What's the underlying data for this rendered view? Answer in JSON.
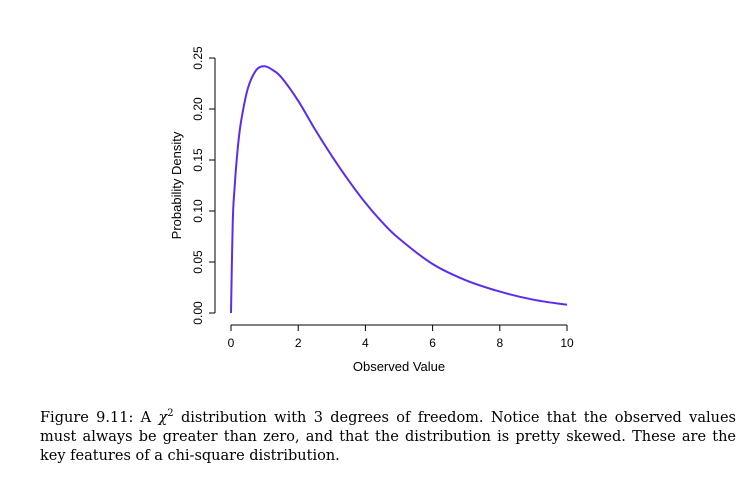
{
  "chart_data": {
    "type": "line",
    "title": "",
    "xlabel": "Observed Value",
    "ylabel": "Probability Density",
    "xlim": [
      0,
      10
    ],
    "ylim": [
      0,
      0.25
    ],
    "x_ticks": [
      0,
      2,
      4,
      6,
      8,
      10
    ],
    "x_tick_labels": [
      "0",
      "2",
      "4",
      "6",
      "8",
      "10"
    ],
    "y_ticks": [
      0,
      0.05,
      0.1,
      0.15,
      0.2,
      0.25
    ],
    "y_tick_labels": [
      "0.00",
      "0.05",
      "0.10",
      "0.15",
      "0.20",
      "0.25"
    ],
    "grid": false,
    "line_color": "#5b2cf0",
    "x": [
      0,
      0.05,
      0.1,
      0.2,
      0.3,
      0.5,
      0.75,
      1,
      1.25,
      1.5,
      2,
      2.5,
      3,
      3.5,
      4,
      4.5,
      5,
      6,
      7,
      8,
      9,
      10
    ],
    "y": [
      0,
      0.087,
      0.12,
      0.161,
      0.188,
      0.22,
      0.238,
      0.242,
      0.238,
      0.231,
      0.208,
      0.18,
      0.154,
      0.13,
      0.108,
      0.089,
      0.073,
      0.048,
      0.032,
      0.021,
      0.013,
      0.008
    ]
  },
  "caption": {
    "label": "Figure 9.11:",
    "text_before_symbol": " A ",
    "symbol": "χ",
    "superscript": "2",
    "text_after_symbol": " distribution with 3 degrees of freedom. Notice that the observed values must always be greater than zero, and that the distribution is pretty skewed. These are the key features of a chi-square distribution."
  }
}
